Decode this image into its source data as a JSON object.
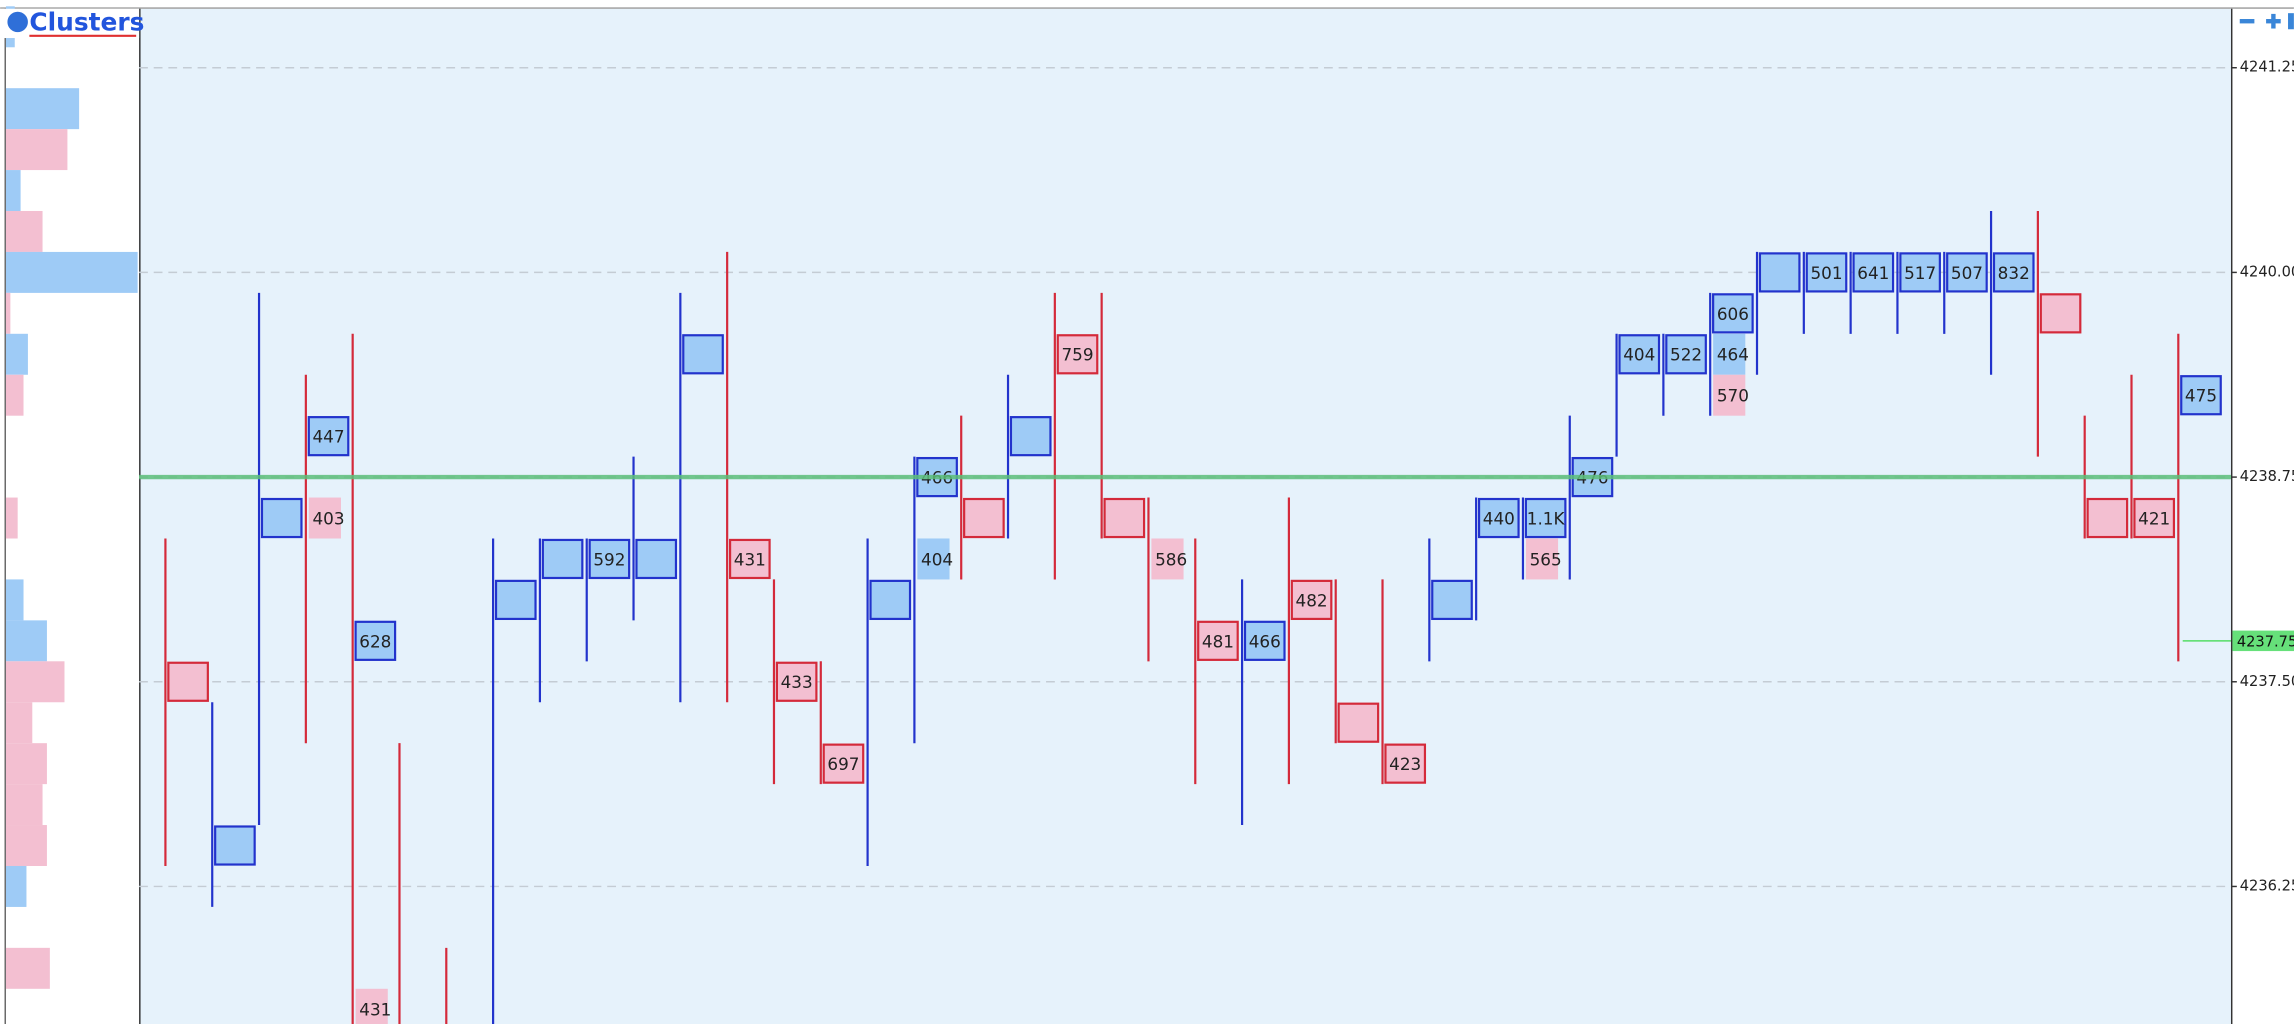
{
  "chart_data": {
    "type": "footprint",
    "title": "Clusters",
    "ylim": [
      4235.41,
      4241.61
    ],
    "yticks": [
      4241.25,
      {
        "value": 4240,
        "label": "4240.00"
      },
      4238.75,
      {
        "value": 4237.5,
        "label": "4237.50"
      },
      4236.25
    ],
    "grid": true,
    "level": 4238.75,
    "last_price": 4237.75,
    "colors": {
      "buy": "#9ecbf6",
      "buy_edge": "#2233cc",
      "sell": "#f3bfd1",
      "sell_edge": "#d42a3a",
      "level": "#5cbf7a"
    },
    "profile": [
      {
        "price": 4241.5,
        "side": "buy",
        "volume": 6
      },
      {
        "price": 4241,
        "side": "buy",
        "volume": 50
      },
      {
        "price": 4240.75,
        "side": "sell",
        "volume": 42
      },
      {
        "price": 4240.5,
        "side": "buy",
        "volume": 10
      },
      {
        "price": 4240.25,
        "side": "sell",
        "volume": 25
      },
      {
        "price": 4240,
        "side": "buy",
        "volume": 90
      },
      {
        "price": 4239.75,
        "side": "sell",
        "volume": 3
      },
      {
        "price": 4239.5,
        "side": "buy",
        "volume": 15
      },
      {
        "price": 4239.25,
        "side": "sell",
        "volume": 12
      },
      {
        "price": 4238.5,
        "side": "sell",
        "volume": 8
      },
      {
        "price": 4238,
        "side": "buy",
        "volume": 12
      },
      {
        "price": 4237.75,
        "side": "buy",
        "volume": 28
      },
      {
        "price": 4237.5,
        "side": "sell",
        "volume": 40
      },
      {
        "price": 4237.25,
        "side": "sell",
        "volume": 18
      },
      {
        "price": 4237,
        "side": "sell",
        "volume": 28
      },
      {
        "price": 4236.75,
        "side": "sell",
        "volume": 25
      },
      {
        "price": 4236.5,
        "side": "sell",
        "volume": 28
      },
      {
        "price": 4236.25,
        "side": "buy",
        "volume": 14
      },
      {
        "price": 4235.75,
        "side": "sell",
        "volume": 30
      }
    ],
    "columns": [
      {
        "high": 4238.25,
        "low": 4236.5,
        "side": "sell",
        "cells": [
          {
            "price": 4237.5,
            "side": "sell",
            "boxed": true
          }
        ]
      },
      {
        "high": 4237.25,
        "low": 4236.25,
        "side": "buy",
        "cells": [
          {
            "price": 4236.5,
            "side": "buy",
            "boxed": true
          }
        ]
      },
      {
        "high": 4239.75,
        "low": 4236.75,
        "side": "buy",
        "cells": [
          {
            "price": 4238.5,
            "side": "buy",
            "boxed": true
          }
        ]
      },
      {
        "high": 4239.25,
        "low": 4237.25,
        "side": "sell",
        "cells": [
          {
            "price": 4239,
            "side": "buy",
            "boxed": true,
            "volume": 447
          },
          {
            "price": 4238.5,
            "side": "sell",
            "boxed": false,
            "volume": 403
          }
        ]
      },
      {
        "high": 4239.5,
        "low": 4235.5,
        "side": "sell",
        "cells": [
          {
            "price": 4237.75,
            "side": "buy",
            "boxed": true,
            "volume": 628
          },
          {
            "price": 4235.5,
            "side": "sell",
            "boxed": false,
            "volume": 431
          }
        ]
      },
      {
        "high": 4237,
        "low": 4235.5,
        "side": "sell",
        "cells": []
      },
      {
        "high": 4235.75,
        "low": 4235.5,
        "side": "sell",
        "cells": []
      },
      {
        "high": 4238.25,
        "low": 4235.5,
        "side": "buy",
        "cells": [
          {
            "price": 4238,
            "side": "buy",
            "boxed": true
          }
        ]
      },
      {
        "high": 4238.25,
        "low": 4237.5,
        "side": "buy",
        "cells": [
          {
            "price": 4238.25,
            "side": "buy",
            "boxed": true
          }
        ]
      },
      {
        "high": 4238.25,
        "low": 4237.75,
        "side": "buy",
        "cells": [
          {
            "price": 4238.25,
            "side": "buy",
            "boxed": true,
            "volume": 592
          }
        ]
      },
      {
        "high": 4238.75,
        "low": 4238,
        "side": "buy",
        "cells": [
          {
            "price": 4238.25,
            "side": "buy",
            "boxed": true
          }
        ]
      },
      {
        "high": 4239.75,
        "low": 4237.5,
        "side": "buy",
        "cells": [
          {
            "price": 4239.5,
            "side": "buy",
            "boxed": true
          }
        ]
      },
      {
        "high": 4240,
        "low": 4237.5,
        "side": "sell",
        "cells": [
          {
            "price": 4238.25,
            "side": "sell",
            "boxed": true,
            "volume": 431
          }
        ]
      },
      {
        "high": 4238,
        "low": 4237,
        "side": "sell",
        "cells": [
          {
            "price": 4237.5,
            "side": "sell",
            "boxed": true,
            "volume": 433
          }
        ]
      },
      {
        "high": 4237.5,
        "low": 4237,
        "side": "sell",
        "cells": [
          {
            "price": 4237,
            "side": "sell",
            "boxed": true,
            "volume": 697
          }
        ]
      },
      {
        "high": 4238.25,
        "low": 4236.5,
        "side": "buy",
        "cells": [
          {
            "price": 4238,
            "side": "buy",
            "boxed": true
          }
        ]
      },
      {
        "high": 4238.75,
        "low": 4237.25,
        "side": "buy",
        "cells": [
          {
            "price": 4238.75,
            "side": "buy",
            "boxed": true,
            "volume": 466
          },
          {
            "price": 4238.25,
            "side": "buy",
            "boxed": false,
            "volume": 404
          }
        ]
      },
      {
        "high": 4239,
        "low": 4238.25,
        "side": "sell",
        "cells": [
          {
            "price": 4238.5,
            "side": "sell",
            "boxed": true
          }
        ]
      },
      {
        "high": 4239.25,
        "low": 4238.5,
        "side": "buy",
        "cells": [
          {
            "price": 4239,
            "side": "buy",
            "boxed": true
          }
        ]
      },
      {
        "high": 4239.75,
        "low": 4238.25,
        "side": "sell",
        "cells": [
          {
            "price": 4239.5,
            "side": "sell",
            "boxed": true,
            "volume": 759
          }
        ]
      },
      {
        "high": 4239.75,
        "low": 4238.5,
        "side": "sell",
        "cells": [
          {
            "price": 4238.5,
            "side": "sell",
            "boxed": true
          }
        ]
      },
      {
        "high": 4238.5,
        "low": 4237.75,
        "side": "sell",
        "cells": [
          {
            "price": 4238.25,
            "side": "sell",
            "boxed": false,
            "volume": 586
          }
        ]
      },
      {
        "high": 4238.25,
        "low": 4237,
        "side": "sell",
        "cells": [
          {
            "price": 4237.75,
            "side": "sell",
            "boxed": true,
            "volume": 481
          }
        ]
      },
      {
        "high": 4238,
        "low": 4236.75,
        "side": "buy",
        "cells": [
          {
            "price": 4237.75,
            "side": "buy",
            "boxed": true,
            "volume": 466
          }
        ]
      },
      {
        "high": 4238.5,
        "low": 4237,
        "side": "sell",
        "cells": [
          {
            "price": 4238,
            "side": "sell",
            "boxed": true,
            "volume": 482
          }
        ]
      },
      {
        "high": 4238,
        "low": 4237.25,
        "side": "sell",
        "cells": [
          {
            "price": 4237.25,
            "side": "sell",
            "boxed": true
          }
        ]
      },
      {
        "high": 4238,
        "low": 4237,
        "side": "sell",
        "cells": [
          {
            "price": 4237,
            "side": "sell",
            "boxed": true,
            "volume": 423
          }
        ]
      },
      {
        "high": 4238.25,
        "low": 4237.75,
        "side": "buy",
        "cells": [
          {
            "price": 4238,
            "side": "buy",
            "boxed": true
          }
        ]
      },
      {
        "high": 4238.5,
        "low": 4238,
        "side": "buy",
        "cells": [
          {
            "price": 4238.5,
            "side": "buy",
            "boxed": true,
            "volume": 440
          }
        ]
      },
      {
        "high": 4238.5,
        "low": 4238.25,
        "side": "buy",
        "cells": [
          {
            "price": 4238.5,
            "side": "buy",
            "boxed": true,
            "volume": 1100,
            "label": "1.1K"
          },
          {
            "price": 4238.25,
            "side": "sell",
            "boxed": false,
            "volume": 565
          }
        ]
      },
      {
        "high": 4239,
        "low": 4238.25,
        "side": "buy",
        "cells": [
          {
            "price": 4238.75,
            "side": "buy",
            "boxed": true,
            "volume": 476
          }
        ]
      },
      {
        "high": 4239.5,
        "low": 4239,
        "side": "buy",
        "cells": [
          {
            "price": 4239.5,
            "side": "buy",
            "boxed": true,
            "volume": 404
          }
        ]
      },
      {
        "high": 4239.5,
        "low": 4239.25,
        "side": "buy",
        "cells": [
          {
            "price": 4239.5,
            "side": "buy",
            "boxed": true,
            "volume": 522
          }
        ]
      },
      {
        "high": 4239.75,
        "low": 4239.25,
        "side": "buy",
        "cells": [
          {
            "price": 4239.75,
            "side": "buy",
            "boxed": true,
            "volume": 606
          },
          {
            "price": 4239.5,
            "side": "buy",
            "boxed": false,
            "volume": 464
          },
          {
            "price": 4239.25,
            "side": "sell",
            "boxed": false,
            "volume": 570
          }
        ]
      },
      {
        "high": 4240,
        "low": 4239.5,
        "side": "buy",
        "cells": [
          {
            "price": 4240,
            "side": "buy",
            "boxed": true
          }
        ]
      },
      {
        "high": 4240,
        "low": 4239.75,
        "side": "buy",
        "cells": [
          {
            "price": 4240,
            "side": "buy",
            "boxed": true,
            "volume": 501
          }
        ]
      },
      {
        "high": 4240,
        "low": 4239.75,
        "side": "buy",
        "cells": [
          {
            "price": 4240,
            "side": "buy",
            "boxed": true,
            "volume": 641
          }
        ]
      },
      {
        "high": 4240,
        "low": 4239.75,
        "side": "buy",
        "cells": [
          {
            "price": 4240,
            "side": "buy",
            "boxed": true,
            "volume": 517
          }
        ]
      },
      {
        "high": 4240,
        "low": 4239.75,
        "side": "buy",
        "cells": [
          {
            "price": 4240,
            "side": "buy",
            "boxed": true,
            "volume": 507
          }
        ]
      },
      {
        "high": 4240.25,
        "low": 4239.5,
        "side": "buy",
        "cells": [
          {
            "price": 4240,
            "side": "buy",
            "boxed": true,
            "volume": 832
          }
        ]
      },
      {
        "high": 4240.25,
        "low": 4239,
        "side": "sell",
        "cells": [
          {
            "price": 4239.75,
            "side": "sell",
            "boxed": true
          }
        ]
      },
      {
        "high": 4239,
        "low": 4238.5,
        "side": "sell",
        "cells": [
          {
            "price": 4238.5,
            "side": "sell",
            "boxed": true
          }
        ]
      },
      {
        "high": 4239.25,
        "low": 4238.5,
        "side": "sell",
        "cells": [
          {
            "price": 4238.5,
            "side": "sell",
            "boxed": true,
            "volume": 421
          }
        ]
      },
      {
        "high": 4239.5,
        "low": 4237.75,
        "side": "sell",
        "cells": [
          {
            "price": 4239.25,
            "side": "buy",
            "boxed": true,
            "volume": 475
          }
        ]
      }
    ]
  }
}
